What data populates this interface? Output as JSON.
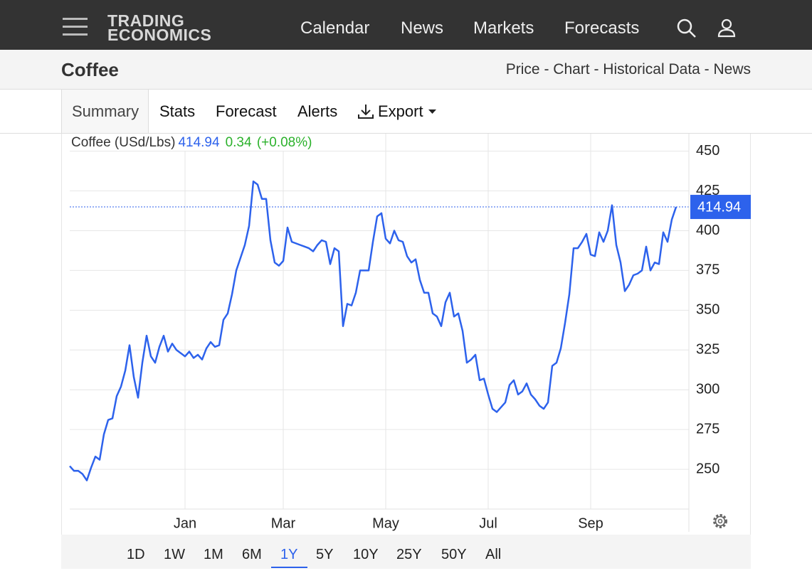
{
  "header": {
    "logo_line1": "TRADING",
    "logo_line2": "ECONOMICS",
    "nav": [
      "Calendar",
      "News",
      "Markets",
      "Forecasts"
    ]
  },
  "page": {
    "title": "Coffee",
    "links": "Price - Chart - Historical Data - News"
  },
  "tabs": [
    "Summary",
    "Stats",
    "Forecast",
    "Alerts",
    "Export"
  ],
  "chart_data": {
    "type": "line",
    "change": "0.34",
    "change_percent": "(+0.08%)",
    "categories": [
      null,
      null,
      null,
      null,
      null,
      null,
      null,
      null,
      null,
      null,
      null,
      null,
      null,
      null,
      null,
      null,
      null,
      null,
      null,
      null,
      null,
      null,
      null,
      null,
      null,
      null,
      null,
      "Jan",
      null,
      null,
      null,
      null,
      null,
      null,
      null,
      null,
      null,
      null,
      null,
      null,
      null,
      null,
      null,
      null,
      null,
      null,
      null,
      null,
      null,
      null,
      "Mar",
      null,
      null,
      null,
      null,
      null,
      null,
      null,
      null,
      null,
      null,
      null,
      null,
      null,
      null,
      null,
      null,
      null,
      null,
      null,
      null,
      null,
      null,
      null,
      "May",
      null,
      null,
      null,
      null,
      null,
      null,
      null,
      null,
      null,
      null,
      null,
      null,
      null,
      null,
      null,
      null,
      null,
      null,
      null,
      null,
      null,
      null,
      null,
      "Jul",
      null,
      null,
      null,
      null,
      null,
      null,
      null,
      null,
      null,
      null,
      null,
      null,
      null,
      null,
      null,
      null,
      null,
      null,
      null,
      null,
      null,
      null,
      null,
      "Sep",
      null,
      null,
      null,
      null,
      null,
      null,
      null,
      null,
      null,
      null,
      null,
      null,
      null,
      null,
      null,
      null,
      null,
      null,
      null,
      null
    ],
    "series": [
      {
        "name": "Coffee (USd/Lbs)",
        "color": "#2d62ec",
        "values": [
          252,
          249,
          249,
          247,
          243,
          251,
          258,
          256,
          272,
          281,
          282,
          296,
          302,
          312,
          328,
          308,
          295,
          317,
          334,
          321,
          317,
          327,
          334,
          324,
          329,
          325,
          323,
          321,
          324,
          320,
          322,
          319,
          326,
          330,
          327,
          328,
          344,
          348,
          360,
          375,
          383,
          391,
          403,
          431,
          429,
          420,
          420,
          394,
          380,
          378,
          381,
          402,
          393,
          392,
          391,
          390,
          389,
          387,
          391,
          394,
          393,
          379,
          389,
          387,
          340,
          354,
          353,
          361,
          375,
          375,
          375,
          393,
          409,
          411,
          395,
          392,
          400,
          394,
          393,
          384,
          380,
          382,
          369,
          361,
          361,
          348,
          346,
          340,
          355,
          361,
          346,
          348,
          337,
          317,
          319,
          322,
          306,
          307,
          297,
          288,
          286,
          289,
          292,
          303,
          306,
          297,
          299,
          304,
          297,
          294,
          290,
          288,
          292,
          315,
          317,
          326,
          342,
          360,
          389,
          389,
          393,
          398,
          385,
          384,
          399,
          393,
          400,
          416,
          391,
          380,
          362,
          366,
          372,
          373,
          375,
          390,
          375,
          380,
          379,
          399,
          393,
          407,
          414.94
        ]
      }
    ],
    "ylim": [
      225,
      461
    ],
    "yticks": [
      250,
      275,
      300,
      325,
      350,
      375,
      400,
      425,
      450
    ],
    "grid": true
  },
  "ranges": [
    "1D",
    "1W",
    "1M",
    "6M",
    "1Y",
    "5Y",
    "10Y",
    "25Y",
    "50Y",
    "All"
  ],
  "selected_range": "1Y"
}
